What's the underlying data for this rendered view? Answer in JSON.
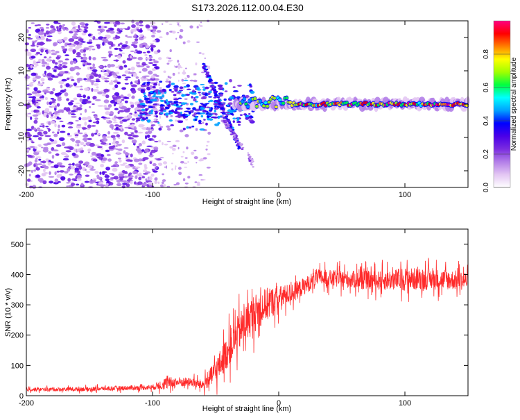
{
  "title": "S173.2026.112.00.04.E30",
  "chart_data": [
    {
      "type": "heatmap",
      "xlabel": "Height of straight line (km)",
      "ylabel": "Frequency (Hz)",
      "xlim": [
        -200,
        150
      ],
      "ylim": [
        -25,
        25
      ],
      "x_ticks": [
        -200,
        -100,
        0,
        100
      ],
      "x_tick_labels": [
        "-200",
        "-100",
        "0",
        "100"
      ],
      "y_ticks": [
        -20,
        -10,
        0,
        10,
        20
      ],
      "y_tick_labels": [
        "-20",
        "-10",
        "0",
        "10",
        "20"
      ],
      "colorbar": {
        "label": "Normalized spectral amplitude",
        "range": [
          0,
          1
        ],
        "ticks": [
          0.0,
          0.2,
          0.4,
          0.6,
          0.8
        ],
        "tick_labels": [
          "0.0",
          "0.2",
          "0.4",
          "0.6",
          "0.8"
        ],
        "colors": [
          "#ffffff",
          "#e3c6f3",
          "#b37ee8",
          "#7a2ce0",
          "#4a00e8",
          "#0000ff",
          "#00a0ff",
          "#00ffff",
          "#00ff40",
          "#a0ff00",
          "#ffff00",
          "#ff8000",
          "#ff0000",
          "#ff0080"
        ]
      },
      "features": {
        "noise_region_x": [
          -200,
          -100
        ],
        "transition_region_x": [
          -100,
          -20
        ],
        "carrier_region_x": [
          -20,
          150
        ],
        "carrier_frequency_hz": 0
      }
    },
    {
      "type": "line",
      "xlabel": "Height of straight line (km)",
      "ylabel": "SNR (10 * v/v)",
      "xlim": [
        -200,
        150
      ],
      "ylim": [
        0,
        550
      ],
      "x_ticks": [
        -200,
        -100,
        0,
        100
      ],
      "x_tick_labels": [
        "-200",
        "-100",
        "0",
        "100"
      ],
      "y_ticks": [
        0,
        100,
        200,
        300,
        400,
        500
      ],
      "y_tick_labels": [
        "0",
        "100",
        "200",
        "300",
        "400",
        "500"
      ],
      "line_color": "#ff2a2a",
      "series": [
        {
          "name": "SNR",
          "x": [
            -200,
            -150,
            -100,
            -90,
            -80,
            -70,
            -60,
            -50,
            -40,
            -30,
            -20,
            -10,
            0,
            10,
            20,
            30,
            50,
            80,
            100,
            120,
            150
          ],
          "y": [
            20,
            22,
            28,
            40,
            45,
            45,
            35,
            80,
            150,
            220,
            270,
            300,
            320,
            340,
            360,
            390,
            385,
            380,
            385,
            385,
            380
          ],
          "noise_amplitude": [
            8,
            10,
            12,
            30,
            25,
            20,
            25,
            60,
            80,
            90,
            90,
            80,
            60,
            45,
            40,
            40,
            40,
            45,
            55,
            50,
            45
          ]
        }
      ]
    }
  ]
}
